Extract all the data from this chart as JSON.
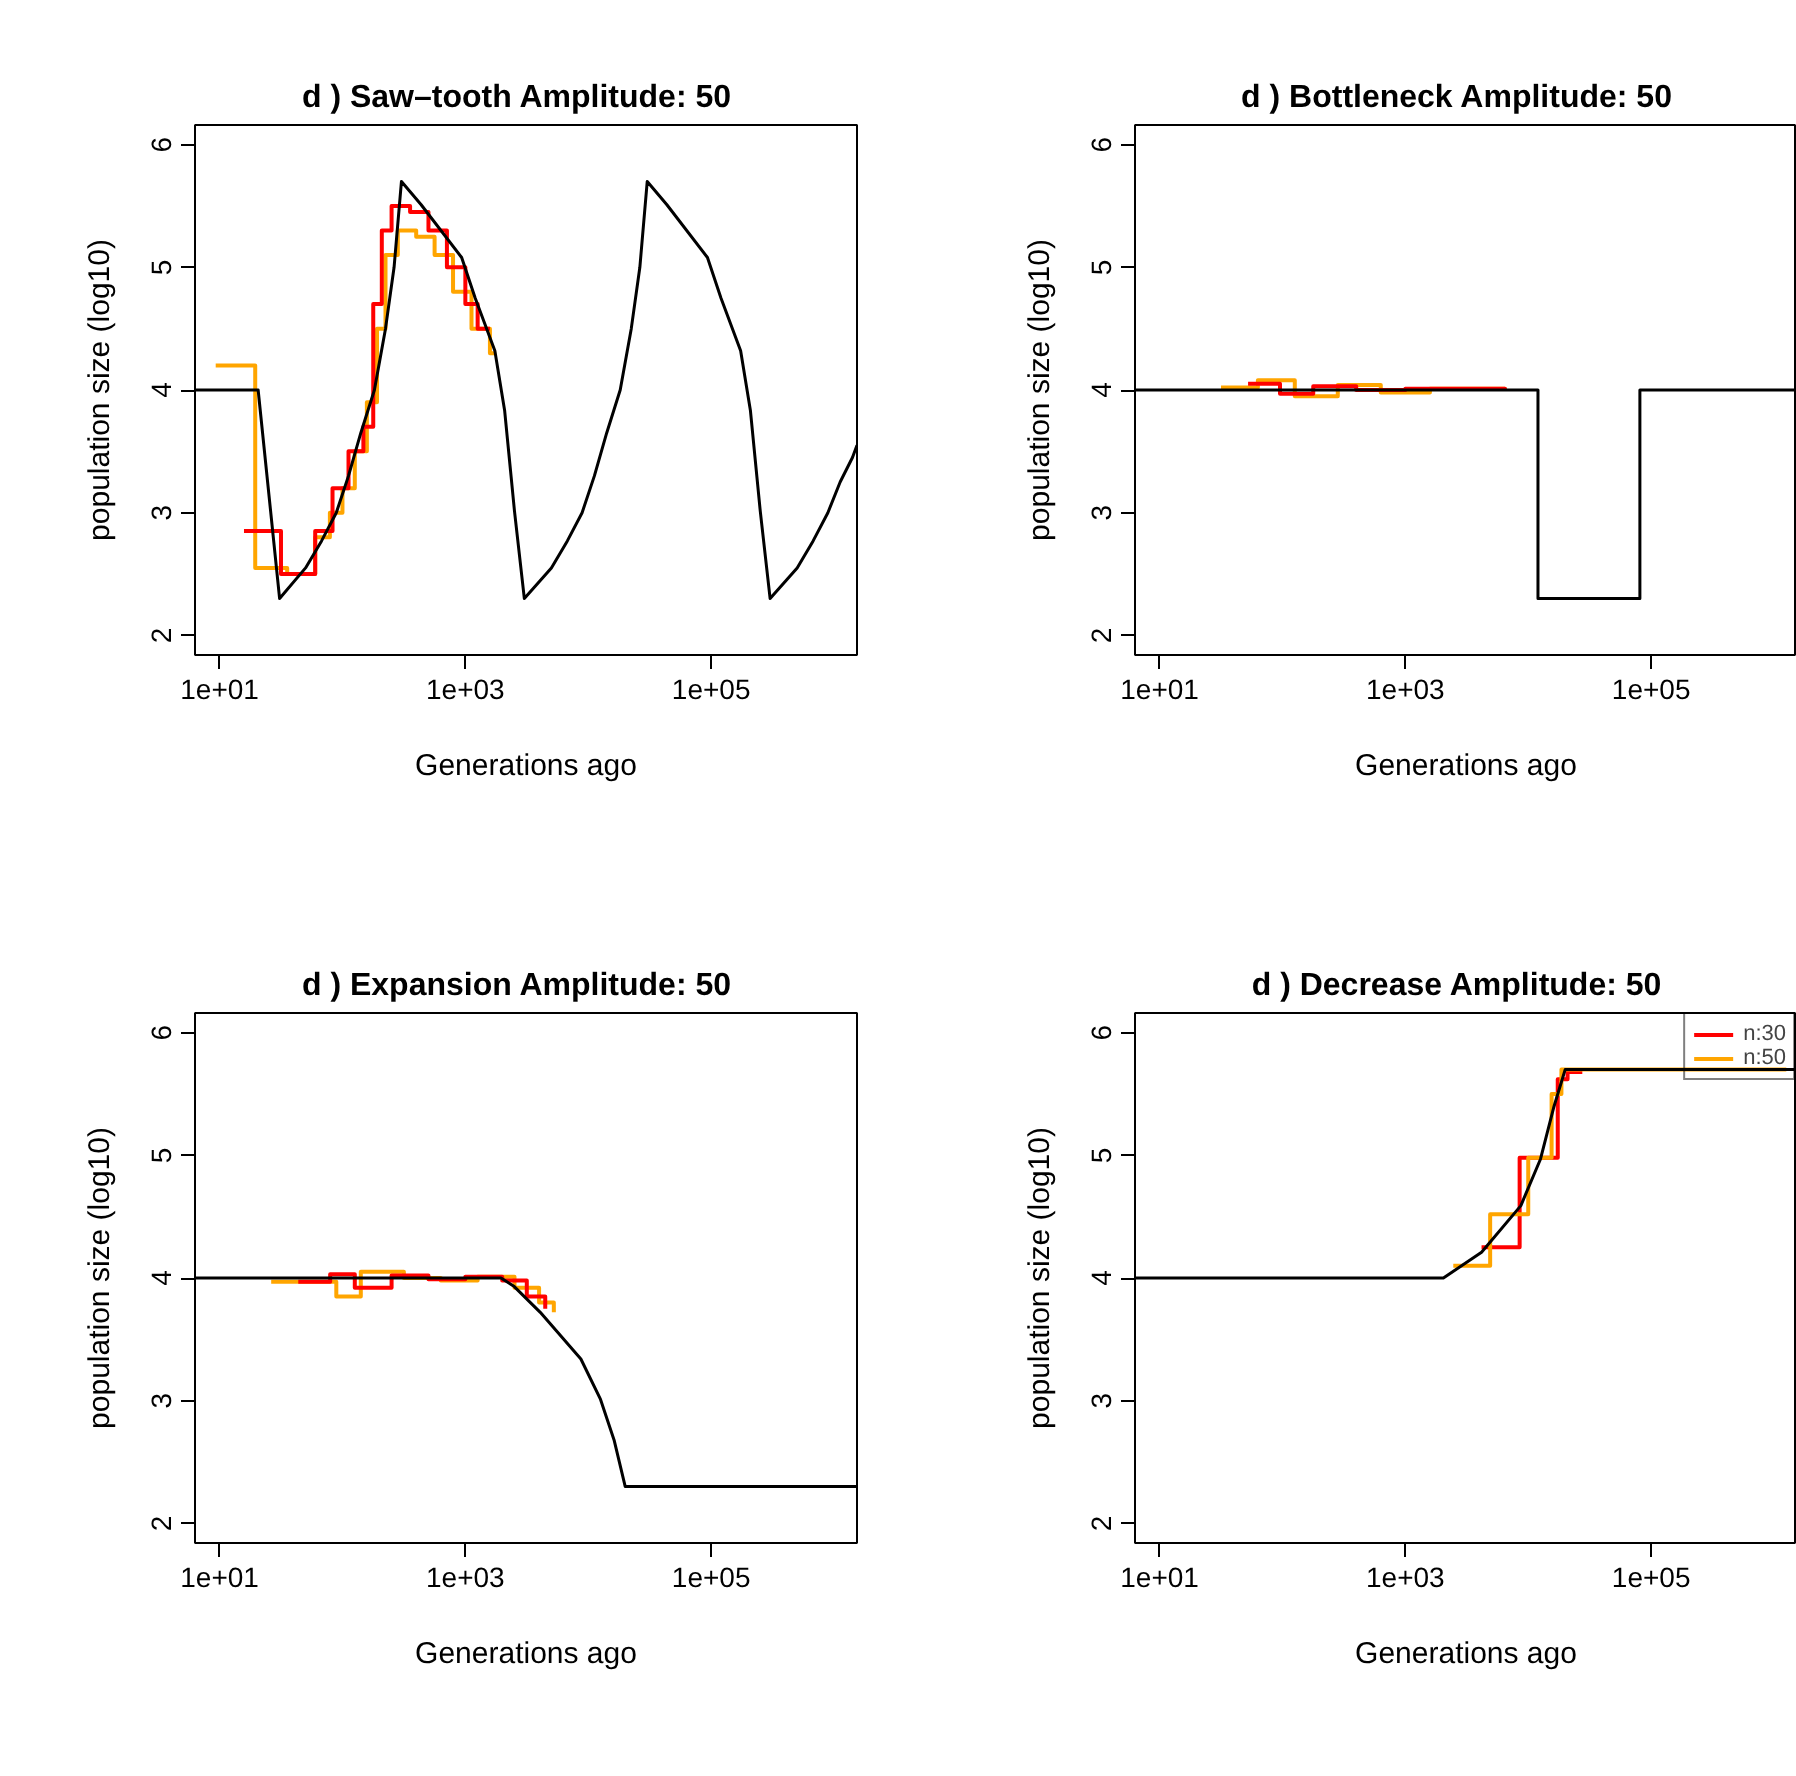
{
  "chart_data": [
    {
      "type": "line",
      "title": "d ) Saw–tooth   Amplitude: 50",
      "xlabel": "Generations ago",
      "ylabel": "population size (log10)",
      "log": "x",
      "grid": false,
      "xlim": [
        6.31,
        1538000
      ],
      "xticks": [
        {
          "value": 10,
          "label": "1e+01"
        },
        {
          "value": 1000,
          "label": "1e+03"
        },
        {
          "value": 100000,
          "label": "1e+05"
        }
      ],
      "ylim": [
        1.84,
        6.16
      ],
      "yticks": [
        2,
        3,
        4,
        5,
        6
      ],
      "series": [
        {
          "type": "step",
          "color": "#ffa500",
          "x": [
            9.3,
            19.5,
            35.5,
            60,
            79,
            100,
            126,
            158,
            191,
            224,
            282,
            398,
            562,
            794,
            1122,
            1585,
            1778
          ],
          "values": [
            4.2,
            2.55,
            2.5,
            2.8,
            3.0,
            3.2,
            3.5,
            3.9,
            4.5,
            5.1,
            5.3,
            5.25,
            5.1,
            4.8,
            4.5,
            4.3,
            4.3
          ]
        },
        {
          "type": "step",
          "color": "#ff0000",
          "x": [
            15.8,
            31.6,
            39.8,
            60,
            83,
            112,
            148,
            178,
            209,
            251,
            355,
            501,
            708,
            1000,
            1259,
            1585
          ],
          "values": [
            2.85,
            2.5,
            2.5,
            2.85,
            3.2,
            3.5,
            3.7,
            4.7,
            5.3,
            5.5,
            5.45,
            5.3,
            5.0,
            4.7,
            4.5,
            4.5
          ]
        },
        {
          "type": "line",
          "color": "#000000",
          "x": [
            6.31,
            20.6,
            30.8,
            50.1,
            67.6,
            89.1,
            112,
            141,
            182,
            224,
            263,
            302,
            437,
            933,
            1202,
            1738,
            2089,
            2512,
            3020,
            5012,
            6761,
            8913,
            11220,
            14130,
            18200,
            22390,
            26300,
            30200,
            43650,
            93330,
            120200,
            173800,
            208900,
            251200,
            302000,
            501200,
            676100,
            891300,
            1122000,
            1413000,
            1538000
          ],
          "values": [
            4.0,
            4.0,
            2.3,
            2.55,
            2.77,
            3.0,
            3.3,
            3.65,
            4.0,
            4.5,
            5.0,
            5.7,
            5.51,
            5.08,
            4.75,
            4.32,
            3.83,
            3.01,
            2.3,
            2.55,
            2.77,
            3.0,
            3.3,
            3.65,
            4.0,
            4.5,
            5.0,
            5.7,
            5.51,
            5.08,
            4.75,
            4.32,
            3.83,
            3.01,
            2.3,
            2.55,
            2.77,
            3.0,
            3.25,
            3.45,
            3.55
          ]
        }
      ]
    },
    {
      "type": "line",
      "title": "d )  Bottleneck  Amplitude: 50",
      "xlabel": "Generations ago",
      "ylabel": "population size (log10)",
      "log": "x",
      "grid": false,
      "xlim": [
        6.31,
        1538000
      ],
      "xticks": [
        {
          "value": 10,
          "label": "1e+01"
        },
        {
          "value": 1000,
          "label": "1e+03"
        },
        {
          "value": 100000,
          "label": "1e+05"
        }
      ],
      "ylim": [
        1.84,
        6.16
      ],
      "yticks": [
        2,
        3,
        4,
        5,
        6
      ],
      "series": [
        {
          "type": "step",
          "color": "#ffa500",
          "x": [
            31.6,
            63.1,
            126,
            282,
            631,
            1585,
            6457
          ],
          "values": [
            4.02,
            4.08,
            3.95,
            4.04,
            3.98,
            4.01,
            4.0
          ]
        },
        {
          "type": "step",
          "color": "#ff0000",
          "x": [
            52.5,
            95.5,
            178,
            398,
            1000,
            6457
          ],
          "values": [
            4.05,
            3.97,
            4.03,
            4.0,
            4.01,
            4.0
          ]
        },
        {
          "type": "step",
          "color": "#000000",
          "x": [
            6.31,
            12000,
            81000,
            1538000
          ],
          "values": [
            4.0,
            2.3,
            4.0,
            4.0
          ]
        }
      ]
    },
    {
      "type": "line",
      "title": "d )  Expansion  Amplitude: 50",
      "xlabel": "Generations ago",
      "ylabel": "population size (log10)",
      "log": "x",
      "grid": false,
      "xlim": [
        6.31,
        1538000
      ],
      "xticks": [
        {
          "value": 10,
          "label": "1e+01"
        },
        {
          "value": 1000,
          "label": "1e+03"
        },
        {
          "value": 100000,
          "label": "1e+05"
        }
      ],
      "ylim": [
        1.84,
        6.16
      ],
      "yticks": [
        2,
        3,
        4,
        5,
        6
      ],
      "series": [
        {
          "type": "step",
          "color": "#ffa500",
          "x": [
            26.3,
            50.1,
            89.1,
            141,
            316,
            631,
            1259,
            2512,
            3981,
            5248
          ],
          "values": [
            3.97,
            3.97,
            3.85,
            4.05,
            4.0,
            3.98,
            4.01,
            3.92,
            3.8,
            3.72
          ]
        },
        {
          "type": "step",
          "color": "#ff0000",
          "x": [
            43.7,
            79.4,
            126,
            251,
            501,
            1000,
            1995,
            3162,
            4467
          ],
          "values": [
            3.97,
            4.03,
            3.92,
            4.02,
            3.99,
            4.01,
            3.98,
            3.85,
            3.75
          ]
        },
        {
          "type": "line",
          "color": "#000000",
          "x": [
            6.31,
            1950,
            2500,
            4070,
            8710,
            12590,
            16220,
            20000,
            1538000
          ],
          "values": [
            4.0,
            4.0,
            3.93,
            3.72,
            3.34,
            3.01,
            2.68,
            2.3,
            2.3
          ]
        }
      ]
    },
    {
      "type": "line",
      "title": "d )  Decrease  Amplitude: 50",
      "xlabel": "Generations ago",
      "ylabel": "population size (log10)",
      "log": "x",
      "grid": false,
      "legend": "top right",
      "xlim": [
        6.31,
        1538000
      ],
      "xticks": [
        {
          "value": 10,
          "label": "1e+01"
        },
        {
          "value": 1000,
          "label": "1e+03"
        },
        {
          "value": 100000,
          "label": "1e+05"
        }
      ],
      "ylim": [
        1.84,
        6.16
      ],
      "yticks": [
        2,
        3,
        4,
        5,
        6
      ],
      "series": [
        {
          "type": "step",
          "name": "n:30",
          "color": "#ff0000",
          "x": [
            4169,
            8511,
            17380,
            20890,
            27540
          ],
          "values": [
            4.25,
            4.98,
            5.62,
            5.68,
            5.68
          ]
        },
        {
          "type": "step",
          "name": "n:50",
          "color": "#ffa500",
          "x": [
            2455,
            4898,
            10000,
            15490,
            18620,
            1259000
          ],
          "values": [
            4.1,
            4.52,
            4.98,
            5.5,
            5.7,
            5.7
          ]
        },
        {
          "type": "line",
          "color": "#000000",
          "x": [
            6.31,
            2040,
            4170,
            8710,
            12590,
            16220,
            20000,
            1538000
          ],
          "values": [
            4.0,
            4.0,
            4.21,
            4.59,
            4.97,
            5.4,
            5.7,
            5.7
          ]
        }
      ]
    }
  ]
}
